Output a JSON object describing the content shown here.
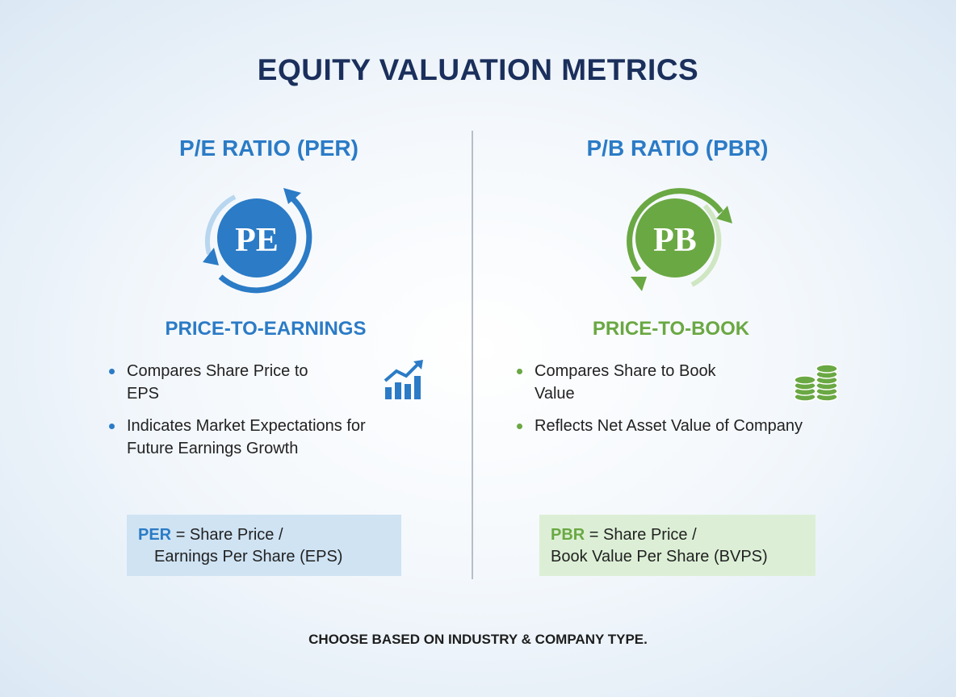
{
  "title": "EQUITY VALUATION METRICS",
  "panels": [
    {
      "heading": "P/E RATIO (PER)",
      "icon_text": "PE",
      "subtitle": "PRICE-TO-EARNINGS",
      "bullets": [
        "Compares Share Price to EPS",
        "Indicates Market Expectations for Future Earnings Growth"
      ],
      "formula": {
        "term": "PER",
        "line1": "= Share Price /",
        "line2": "Earnings Per Share (EPS)"
      }
    },
    {
      "heading": "P/B RATIO (PBR)",
      "icon_text": "PB",
      "subtitle": "PRICE-TO-BOOK",
      "bullets": [
        "Compares Share to Book Value",
        "Reflects Net Asset Value of Company"
      ],
      "formula": {
        "term": "PBR",
        "line1": "= Share Price /",
        "line2": "Book Value Per Share (BVPS)"
      }
    }
  ],
  "footer": "CHOOSE BASED ON INDUSTRY & COMPANY TYPE."
}
